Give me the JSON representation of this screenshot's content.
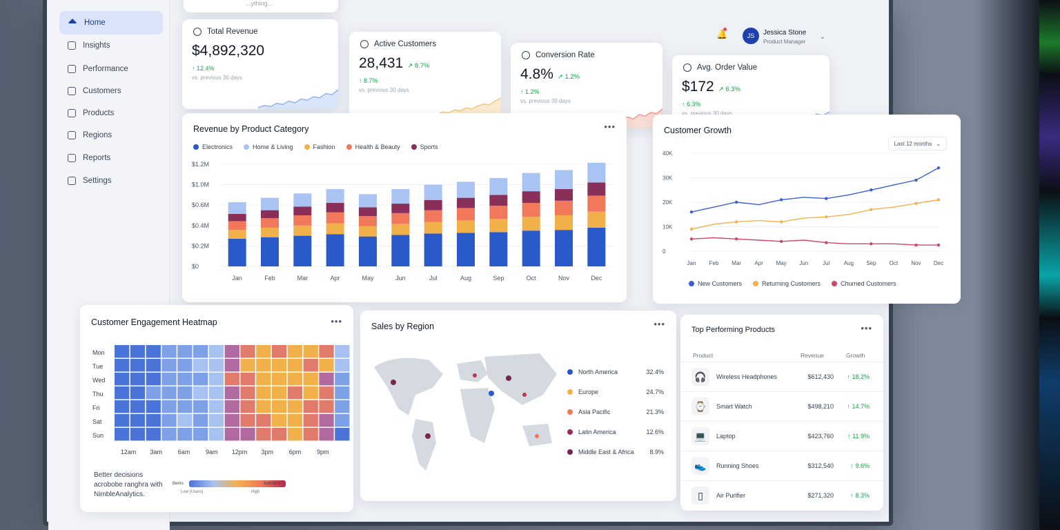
{
  "nav": {
    "items": [
      {
        "label": "Home",
        "active": true,
        "icon": "home-icon"
      },
      {
        "label": "Insights",
        "icon": "insights-icon"
      },
      {
        "label": "Performance",
        "icon": "performance-icon"
      },
      {
        "label": "Customers",
        "icon": "customers-icon"
      },
      {
        "label": "Products",
        "icon": "products-icon"
      },
      {
        "label": "Regions",
        "icon": "regions-icon"
      },
      {
        "label": "Reports",
        "icon": "reports-icon"
      },
      {
        "label": "Settings",
        "icon": "settings-icon"
      }
    ]
  },
  "search": {
    "placeholder": "...ything..."
  },
  "user": {
    "initials": "JS",
    "name": "Jessica Stone",
    "role": "Product Manager"
  },
  "kpis": [
    {
      "title": "Total Revenue",
      "value": "$4,892,320",
      "change": "",
      "delta": "↑ 12.4%",
      "sub": "vs. previous 30 days",
      "color": "#93b4ee",
      "spark": [
        22,
        26,
        24,
        30,
        28,
        34,
        31,
        38,
        36,
        42,
        40,
        48,
        46,
        55
      ]
    },
    {
      "title": "Active Customers",
      "value": "28,431",
      "change": "↗ 8.7%",
      "delta": "↑ 8.7%",
      "sub": "vs. previous 30 days",
      "color": "#f5c77a",
      "spark": [
        18,
        20,
        19,
        22,
        21,
        24,
        23,
        26,
        25,
        28,
        30,
        29,
        33,
        36
      ]
    },
    {
      "title": "Conversion Rate",
      "value": "4.8%",
      "change": "↗ 1.2%",
      "delta": "↑ 1.2%",
      "sub": "vs. previous 30 days",
      "color": "#f19a8a",
      "spark": [
        14,
        16,
        15,
        18,
        17,
        22,
        20,
        25,
        23,
        28,
        26,
        30,
        29,
        34
      ]
    },
    {
      "title": "Avg. Order Value",
      "value": "$172",
      "change": "↗ 6.3%",
      "delta": "↑ 6.3%",
      "sub": "vs. previous 30 days",
      "color": "#93b4ee",
      "spark": [
        20,
        22,
        21,
        24,
        26,
        25,
        28,
        27,
        30,
        29,
        32,
        34,
        33,
        36
      ]
    }
  ],
  "revenue_chart": {
    "title": "Revenue by Product Category",
    "legend": [
      "Electronics",
      "Home & Living",
      "Fashion",
      "Health & Beauty",
      "Sports"
    ],
    "colors": [
      "#2a59c9",
      "#a9c4f2",
      "#f2b04a",
      "#f1785a",
      "#8a2f5a"
    ],
    "y_labels": [
      "$1.2M",
      "$1.0M",
      "$0.6M",
      "$0.4M",
      "$0.2M",
      "$0"
    ]
  },
  "growth_chart": {
    "title": "Customer Growth",
    "range": "Last 12 months",
    "y_labels": [
      "40K",
      "30K",
      "20K",
      "10K",
      "0"
    ],
    "legend": [
      "New Customers",
      "Returning Customers",
      "Churned Customers"
    ],
    "colors": [
      "#3b5fd4",
      "#f4b14d",
      "#d0466b"
    ]
  },
  "heatmap": {
    "title": "Customer Engagement Heatmap",
    "rows": [
      "Mon",
      "Tue",
      "Wed",
      "Thu",
      "Fri",
      "Sat",
      "Sun"
    ],
    "cols": [
      "12am",
      "3am",
      "6am",
      "9am",
      "12pm",
      "3pm",
      "6pm",
      "9pm"
    ],
    "matrix": [
      [
        0.1,
        0.15,
        0.1,
        0.2,
        0.25,
        0.25,
        0.3,
        0.6,
        0.8,
        0.85,
        0.8,
        0.9,
        0.85,
        0.8,
        0.35
      ],
      [
        0.1,
        0.1,
        0.15,
        0.2,
        0.25,
        0.3,
        0.35,
        0.65,
        0.85,
        0.9,
        0.85,
        0.85,
        0.8,
        0.85,
        0.3
      ],
      [
        0.15,
        0.1,
        0.1,
        0.2,
        0.25,
        0.25,
        0.4,
        0.7,
        0.8,
        0.85,
        0.9,
        0.85,
        0.9,
        0.6,
        0.25
      ],
      [
        0.1,
        0.15,
        0.2,
        0.2,
        0.2,
        0.3,
        0.35,
        0.65,
        0.75,
        0.9,
        0.95,
        0.8,
        0.85,
        0.7,
        0.2
      ],
      [
        0.15,
        0.1,
        0.1,
        0.25,
        0.2,
        0.25,
        0.3,
        0.6,
        0.8,
        0.85,
        0.9,
        0.95,
        0.8,
        0.75,
        0.25
      ],
      [
        0.1,
        0.15,
        0.1,
        0.2,
        0.3,
        0.25,
        0.35,
        0.55,
        0.7,
        0.8,
        0.85,
        0.9,
        0.8,
        0.65,
        0.2
      ],
      [
        0.1,
        0.1,
        0.15,
        0.2,
        0.25,
        0.2,
        0.3,
        0.5,
        0.65,
        0.75,
        0.8,
        0.85,
        0.7,
        0.55,
        0.15
      ]
    ],
    "footer_text": "Better decisions acrobobe ranghra with NimbleAnalytics.",
    "scale_left": "Bemo",
    "scale_mid": "Low (Users)",
    "scale_right": "Ausrokus",
    "scale_right2": "High"
  },
  "regions": {
    "title": "Sales by Region",
    "items": [
      {
        "name": "North America",
        "pct": "32.4%",
        "color": "#2a59c9"
      },
      {
        "name": "Europe",
        "pct": "24.7%",
        "color": "#f2b04a"
      },
      {
        "name": "Asia Pacific",
        "pct": "21.3%",
        "color": "#f1785a"
      },
      {
        "name": "Latin America",
        "pct": "12.6%",
        "color": "#9b2d5d"
      },
      {
        "name": "Middle East & Africa",
        "pct": "8.9%",
        "color": "#7a2552"
      }
    ]
  },
  "products": {
    "title": "Top Performing Products",
    "headers": {
      "product": "Product",
      "revenue": "Revenue",
      "growth": "Growth"
    },
    "rows": [
      {
        "name": "Wireless Headphones",
        "revenue": "$612,430",
        "growth": "↑ 18.2%",
        "icon": "headphones-icon",
        "glyph": "🎧"
      },
      {
        "name": "Smart Watch",
        "revenue": "$498,210",
        "growth": "↑ 14.7%",
        "icon": "watch-icon",
        "glyph": "⌚"
      },
      {
        "name": "Laptop",
        "revenue": "$423,760",
        "growth": "↑ 11.9%",
        "icon": "laptop-icon",
        "glyph": "💻"
      },
      {
        "name": "Running Shoes",
        "revenue": "$312,540",
        "growth": "↑ 9.6%",
        "icon": "shoe-icon",
        "glyph": "👟"
      },
      {
        "name": "Air Purifier",
        "revenue": "$271,320",
        "growth": "↑ 8.3%",
        "icon": "purifier-icon",
        "glyph": "▯"
      }
    ]
  },
  "chart_data": [
    {
      "type": "bar",
      "title": "Revenue by Product Category",
      "categories": [
        "Jan",
        "Feb",
        "Mar",
        "Apr",
        "May",
        "Jun",
        "Jul",
        "Aug",
        "Sep",
        "Oct",
        "Nov",
        "Dec"
      ],
      "series": [
        {
          "name": "Electronics",
          "values": [
            0.38,
            0.4,
            0.42,
            0.44,
            0.41,
            0.43,
            0.45,
            0.46,
            0.47,
            0.49,
            0.5,
            0.53
          ]
        },
        {
          "name": "Fashion",
          "values": [
            0.12,
            0.13,
            0.14,
            0.15,
            0.14,
            0.15,
            0.16,
            0.17,
            0.18,
            0.19,
            0.2,
            0.22
          ]
        },
        {
          "name": "Health & Beauty",
          "values": [
            0.12,
            0.13,
            0.14,
            0.15,
            0.14,
            0.15,
            0.16,
            0.17,
            0.18,
            0.19,
            0.2,
            0.22
          ]
        },
        {
          "name": "Sports",
          "values": [
            0.1,
            0.11,
            0.12,
            0.13,
            0.12,
            0.13,
            0.14,
            0.14,
            0.15,
            0.16,
            0.16,
            0.18
          ]
        },
        {
          "name": "Home & Living",
          "values": [
            0.16,
            0.17,
            0.18,
            0.19,
            0.18,
            0.2,
            0.21,
            0.22,
            0.23,
            0.25,
            0.26,
            0.27
          ]
        }
      ],
      "ylim": [
        0,
        1.4
      ],
      "grid": true,
      "legend": "top-left"
    },
    {
      "type": "line",
      "title": "Customer Growth",
      "categories": [
        "Jan",
        "Feb",
        "Mar",
        "Apr",
        "May",
        "Jun",
        "Jul",
        "Aug",
        "Sep",
        "Oct",
        "Nov",
        "Dec"
      ],
      "series": [
        {
          "name": "New Customers",
          "values": [
            16000,
            18000,
            20000,
            19000,
            21000,
            22000,
            21500,
            23000,
            25000,
            27000,
            29000,
            34000
          ]
        },
        {
          "name": "Returning Customers",
          "values": [
            9000,
            11000,
            12000,
            12500,
            12000,
            13500,
            14000,
            15000,
            17000,
            18000,
            19500,
            21000
          ]
        },
        {
          "name": "Churned Customers",
          "values": [
            5000,
            5500,
            5000,
            4500,
            4000,
            4500,
            3500,
            3000,
            3000,
            3000,
            2500,
            2500
          ]
        }
      ],
      "ylim": [
        0,
        40000
      ],
      "grid": true,
      "legend": "bottom"
    }
  ]
}
